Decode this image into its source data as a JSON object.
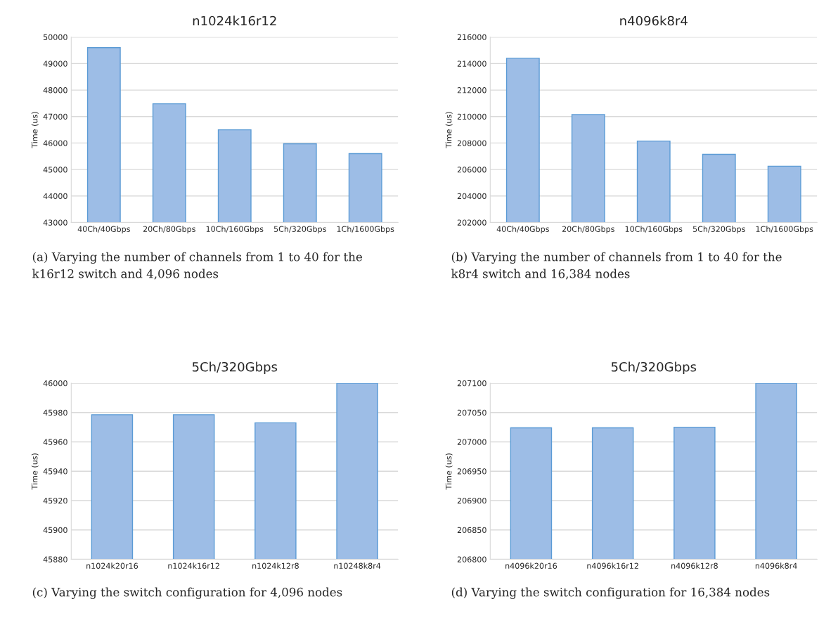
{
  "chart_data": [
    {
      "type": "bar",
      "title": "n1024k16r12",
      "ylabel": "Time (us)",
      "categories": [
        "40Ch/40Gbps",
        "20Ch/80Gbps",
        "10Ch/160Gbps",
        "5Ch/320Gbps",
        "1Ch/1600Gbps"
      ],
      "values": [
        49600,
        47480,
        46500,
        45970,
        45600
      ],
      "color": "#9dbde6",
      "ylim": [
        43000,
        50000
      ],
      "yticks": [
        43000,
        44000,
        45000,
        46000,
        47000,
        48000,
        49000,
        50000
      ],
      "grid": "y",
      "annotations": [
        "(a) Varying the number of channels from 1 to 40 for the\nk16r12 switch and 4,096 nodes"
      ]
    },
    {
      "type": "bar",
      "title": "n4096k8r4",
      "ylabel": "Time (us)",
      "categories": [
        "40Ch/40Gbps",
        "20Ch/80Gbps",
        "10Ch/160Gbps",
        "5Ch/320Gbps",
        "1Ch/1600Gbps"
      ],
      "values": [
        214400,
        210150,
        208150,
        207150,
        206250
      ],
      "color": "#9dbde6",
      "ylim": [
        202000,
        216000
      ],
      "yticks": [
        202000,
        204000,
        206000,
        208000,
        210000,
        212000,
        214000,
        216000
      ],
      "grid": "y",
      "annotations": [
        "(b) Varying the number of channels from 1 to 40 for the\nk8r4 switch and 16,384 nodes"
      ]
    },
    {
      "type": "bar",
      "title": "5Ch/320Gbps",
      "ylabel": "Time (us)",
      "categories": [
        "n1024k20r16",
        "n1024k16r12",
        "n1024k12r8",
        "n10248k8r4"
      ],
      "values": [
        45978.5,
        45978.5,
        45973,
        46000
      ],
      "color": "#9dbde6",
      "ylim": [
        45880,
        46000
      ],
      "yticks": [
        45880,
        45900,
        45920,
        45940,
        45960,
        45980,
        46000
      ],
      "grid": "y",
      "annotations": [
        "(c) Varying the switch configuration for 4,096 nodes"
      ]
    },
    {
      "type": "bar",
      "title": "5Ch/320Gbps",
      "ylabel": "Time (us)",
      "categories": [
        "n4096k20r16",
        "n4096k16r12",
        "n4096k12r8",
        "n4096k8r4"
      ],
      "values": [
        207024,
        207024,
        207025,
        207100
      ],
      "color": "#9dbde6",
      "ylim": [
        206800,
        207100
      ],
      "yticks": [
        206800,
        206850,
        206900,
        206950,
        207000,
        207050,
        207100
      ],
      "grid": "y",
      "annotations": [
        "(d) Varying the switch configuration for 16,384 nodes"
      ]
    }
  ]
}
